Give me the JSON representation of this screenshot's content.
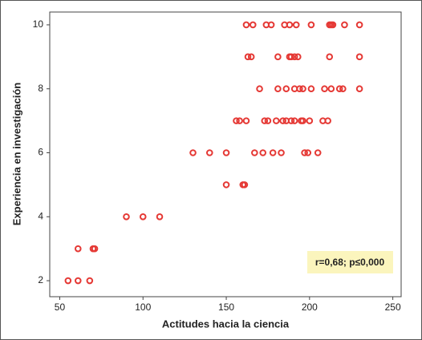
{
  "chart_data": {
    "type": "scatter",
    "x_label": "Actitudes hacia la ciencia",
    "y_label": "Experiencia en investigación",
    "annotation": "r=0,68; p≤0,000",
    "color": "#e53935",
    "x": [
      55,
      61,
      68,
      61,
      70,
      71,
      90,
      100,
      110,
      150,
      160,
      161,
      130,
      140,
      150,
      167,
      172,
      178,
      183,
      197,
      199,
      205,
      156,
      158,
      162,
      173,
      175,
      180,
      184,
      186,
      189,
      191,
      195,
      196,
      200,
      208,
      211,
      170,
      181,
      186,
      191,
      194,
      196,
      201,
      209,
      213,
      218,
      220,
      230,
      163,
      165,
      181,
      188,
      189,
      191,
      193,
      212,
      230,
      162,
      166,
      174,
      177,
      185,
      188,
      192,
      201,
      212,
      213,
      214,
      221,
      230
    ],
    "y": [
      2,
      2,
      2,
      3,
      3,
      3,
      4,
      4,
      4,
      5,
      5,
      5,
      6,
      6,
      6,
      6,
      6,
      6,
      6,
      6,
      6,
      6,
      7,
      7,
      7,
      7,
      7,
      7,
      7,
      7,
      7,
      7,
      7,
      7,
      7,
      7,
      7,
      8,
      8,
      8,
      8,
      8,
      8,
      8,
      8,
      8,
      8,
      8,
      8,
      9,
      9,
      9,
      9,
      9,
      9,
      9,
      9,
      9,
      10,
      10,
      10,
      10,
      10,
      10,
      10,
      10,
      10,
      10,
      10,
      10,
      10
    ],
    "xlim": [
      44,
      255
    ],
    "ylim": [
      1.5,
      10.4
    ],
    "xticks": [
      50,
      100,
      150,
      200,
      250
    ],
    "yticks": [
      2,
      4,
      6,
      8,
      10
    ]
  }
}
